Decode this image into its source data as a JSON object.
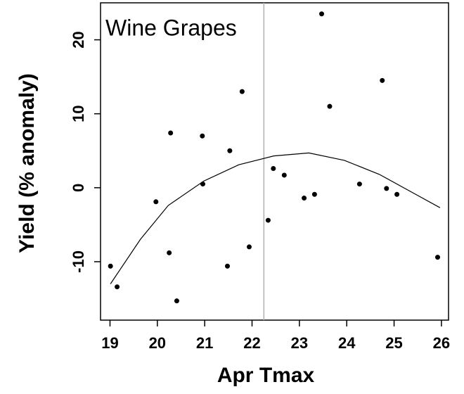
{
  "chart_data": {
    "type": "scatter",
    "title": "Wine Grapes",
    "xlabel": "Apr Tmax",
    "ylabel": "Yield (% anomaly)",
    "xlim": [
      18.8,
      26.15
    ],
    "ylim": [
      -17.9,
      25
    ],
    "xticks": [
      19,
      20,
      21,
      22,
      23,
      24,
      25,
      26
    ],
    "yticks": [
      -10,
      0,
      10,
      20
    ],
    "vline": {
      "x": 22.25,
      "color": "#b0b0b0"
    },
    "series": [
      {
        "type": "scatter",
        "color": "#000000",
        "x": [
          19.01,
          19.15,
          19.97,
          20.28,
          20.25,
          20.41,
          20.95,
          20.96,
          21.53,
          21.48,
          21.79,
          21.94,
          22.34,
          22.45,
          22.68,
          23.1,
          23.32,
          23.47,
          23.64,
          24.27,
          24.75,
          24.84,
          25.06,
          25.92
        ],
        "values": [
          -10.6,
          -13.4,
          -1.9,
          7.4,
          -8.8,
          -15.3,
          7.0,
          0.5,
          5.0,
          -10.6,
          13.0,
          -8.0,
          -4.4,
          2.6,
          1.7,
          -1.4,
          -0.9,
          23.5,
          11.0,
          0.5,
          14.5,
          -0.1,
          -0.9,
          -9.4
        ]
      },
      {
        "type": "line",
        "color": "#000000",
        "x": [
          19.01,
          19.64,
          20.23,
          20.98,
          21.72,
          22.46,
          23.2,
          23.95,
          24.69,
          25.43,
          25.97
        ],
        "values": [
          -13.0,
          -7.0,
          -2.4,
          0.9,
          3.1,
          4.3,
          4.7,
          3.7,
          1.8,
          -0.8,
          -2.7
        ]
      }
    ]
  }
}
